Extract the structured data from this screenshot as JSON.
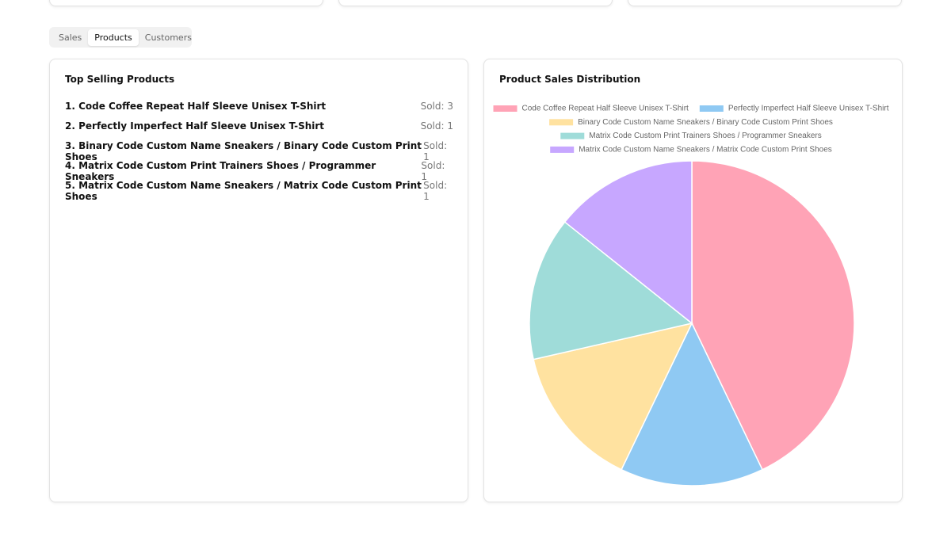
{
  "tabs": [
    "Sales",
    "Products",
    "Customers"
  ],
  "top_selling": {
    "title": "Top Selling Products",
    "items": [
      {
        "name": "1. Code Coffee Repeat Half Sleeve Unisex T-Shirt",
        "sold": "Sold: 3"
      },
      {
        "name": "2. Perfectly Imperfect Half Sleeve Unisex T-Shirt",
        "sold": "Sold: 1"
      },
      {
        "name": "3. Binary Code Custom Name Sneakers / Binary Code Custom Print Shoes",
        "sold": "Sold: 1"
      },
      {
        "name": "4. Matrix Code Custom Print Trainers Shoes / Programmer Sneakers",
        "sold": "Sold: 1"
      },
      {
        "name": "5. Matrix Code Custom Name Sneakers / Matrix Code Custom Print Shoes",
        "sold": "Sold: 1"
      }
    ]
  },
  "chart_data": {
    "type": "pie",
    "title": "Product Sales Distribution",
    "categories": [
      "Code Coffee Repeat Half Sleeve Unisex T-Shirt",
      "Perfectly Imperfect Half Sleeve Unisex T-Shirt",
      "Binary Code Custom Name Sneakers / Binary Code Custom Print Shoes",
      "Matrix Code Custom Print Trainers Shoes / Programmer Sneakers",
      "Matrix Code Custom Name Sneakers / Matrix Code Custom Print Shoes"
    ],
    "values": [
      3,
      1,
      1,
      1,
      1
    ],
    "colors": [
      "#ffa3b6",
      "#8fc9f3",
      "#ffe2a0",
      "#9fdcd9",
      "#c7a7ff"
    ],
    "legend": "top"
  }
}
